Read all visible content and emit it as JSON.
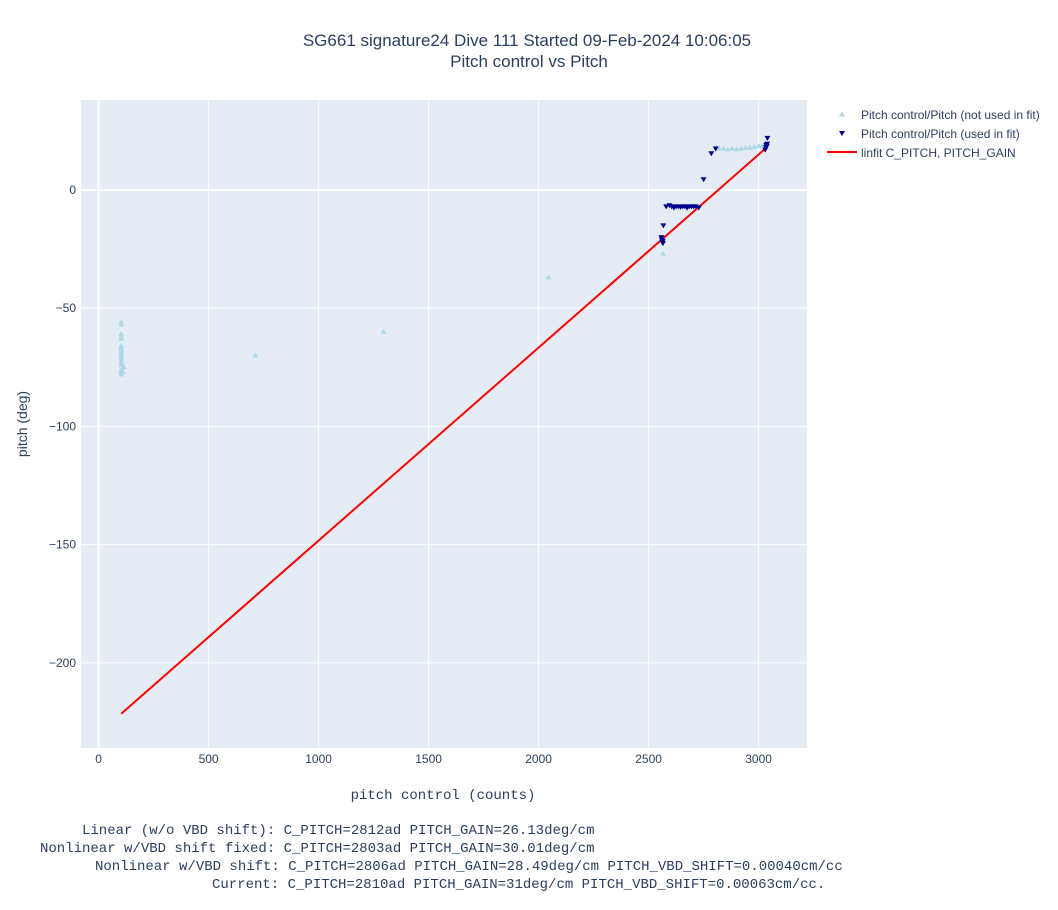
{
  "chart_data": {
    "type": "scatter",
    "title": "SG661 signature24 Dive 111 Started 09-Feb-2024 10:06:05",
    "subtitle": "Pitch control vs Pitch",
    "xlabel": "pitch control (counts)",
    "ylabel": "pitch (deg)",
    "xlim": [
      -80,
      3220
    ],
    "ylim": [
      -236,
      38
    ],
    "xticks": [
      0,
      500,
      1000,
      1500,
      2000,
      2500,
      3000
    ],
    "yticks": [
      0,
      -50,
      -100,
      -150,
      -200
    ],
    "grid": true,
    "legend_position": "top-right",
    "series": [
      {
        "name": "Pitch control/Pitch (not used in fit)",
        "marker": "triangle-up",
        "color": "#add8e6",
        "points": [
          [
            103,
            -56
          ],
          [
            103,
            -57
          ],
          [
            103,
            -61
          ],
          [
            103,
            -62
          ],
          [
            103,
            -63
          ],
          [
            103,
            -66
          ],
          [
            103,
            -67
          ],
          [
            103,
            -68
          ],
          [
            103,
            -69
          ],
          [
            103,
            -70
          ],
          [
            103,
            -71
          ],
          [
            103,
            -72
          ],
          [
            103,
            -73
          ],
          [
            103,
            -74
          ],
          [
            103,
            -76
          ],
          [
            103,
            -77
          ],
          [
            103,
            -78
          ],
          [
            110,
            -77
          ],
          [
            115,
            -75
          ],
          [
            712,
            -70
          ],
          [
            1295,
            -60
          ],
          [
            2045,
            -37
          ],
          [
            2565,
            -27
          ],
          [
            2820,
            17.5
          ],
          [
            2840,
            17.5
          ],
          [
            2860,
            17.2
          ],
          [
            2880,
            17.5
          ],
          [
            2900,
            17.2
          ],
          [
            2920,
            17.5
          ],
          [
            2940,
            17.8
          ],
          [
            2960,
            17.8
          ],
          [
            2980,
            18.2
          ],
          [
            3000,
            18.5
          ],
          [
            3015,
            18.5
          ],
          [
            3030,
            18.6
          ]
        ]
      },
      {
        "name": "Pitch control/Pitch (used in fit)",
        "marker": "triangle-down",
        "color": "#00008b",
        "points": [
          [
            2558,
            -20
          ],
          [
            2560,
            -21
          ],
          [
            2562,
            -22
          ],
          [
            2564,
            -21.5
          ],
          [
            2565,
            -22.5
          ],
          [
            2567,
            -15
          ],
          [
            2580,
            -7
          ],
          [
            2595,
            -6.5
          ],
          [
            2605,
            -7
          ],
          [
            2615,
            -7.5
          ],
          [
            2625,
            -7
          ],
          [
            2635,
            -7
          ],
          [
            2645,
            -7.2
          ],
          [
            2655,
            -7
          ],
          [
            2665,
            -7
          ],
          [
            2675,
            -7.5
          ],
          [
            2685,
            -7
          ],
          [
            2695,
            -7
          ],
          [
            2705,
            -7
          ],
          [
            2715,
            -7
          ],
          [
            2728,
            -7.5
          ],
          [
            2750,
            4.5
          ],
          [
            2785,
            15.5
          ],
          [
            2805,
            17.5
          ],
          [
            3030,
            17
          ],
          [
            3033,
            18
          ],
          [
            3035,
            19
          ],
          [
            3037,
            18.5
          ],
          [
            3039,
            19.5
          ],
          [
            3040,
            22
          ]
        ]
      },
      {
        "name": "linfit C_PITCH, PITCH_GAIN",
        "type": "line",
        "color": "#ff0000",
        "x": [
          103,
          3040
        ],
        "y": [
          -221.5,
          18.2
        ]
      }
    ]
  },
  "footer": {
    "line1": "Linear (w/o VBD shift): C_PITCH=2812ad PITCH_GAIN=26.13deg/cm",
    "line2": "Nonlinear w/VBD shift fixed: C_PITCH=2803ad PITCH_GAIN=30.01deg/cm",
    "line3": "Nonlinear w/VBD shift: C_PITCH=2806ad PITCH_GAIN=28.49deg/cm PITCH_VBD_SHIFT=0.00040cm/cc",
    "line4": "Current: C_PITCH=2810ad PITCH_GAIN=31deg/cm PITCH_VBD_SHIFT=0.00063cm/cc."
  }
}
